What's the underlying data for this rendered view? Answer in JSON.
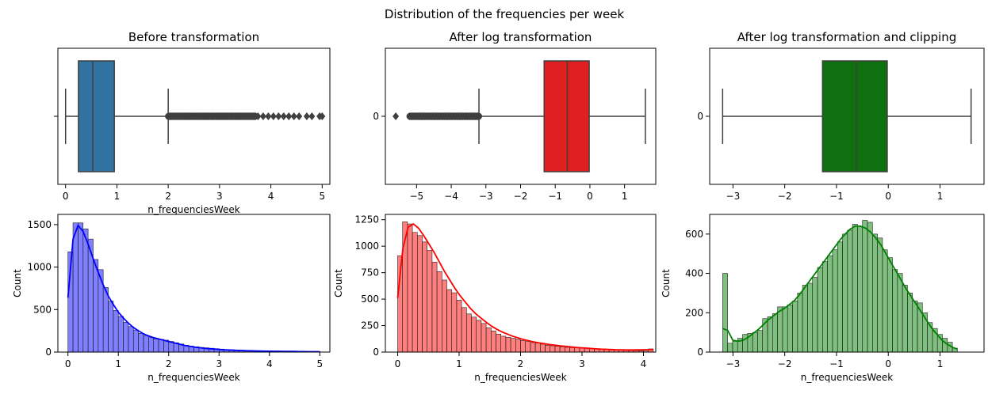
{
  "suptitle": "Distribution of the frequencies per week",
  "chart_data": [
    {
      "type": "box",
      "title": "Before transformation",
      "xlabel": "n_frequenciesWeek",
      "ylabel": "",
      "xlim": [
        -0.15,
        5.15
      ],
      "xticks": [
        0,
        1,
        2,
        3,
        4,
        5
      ],
      "yticks": [
        ""
      ],
      "color": "#3274a1",
      "box": {
        "whislo": 0.0,
        "q1": 0.25,
        "median": 0.53,
        "q3": 0.95,
        "whishi": 2.0
      },
      "outliers": {
        "from": 2.0,
        "to": 5.0,
        "dense_until": 3.7,
        "sparse": [
          3.75,
          3.85,
          3.95,
          4.05,
          4.15,
          4.25,
          4.35,
          4.45,
          4.55,
          4.7,
          4.8,
          4.95,
          5.0
        ]
      }
    },
    {
      "type": "box",
      "title": "After log transformation",
      "xlabel": "",
      "ylabel": "",
      "xlim": [
        -5.9,
        1.9
      ],
      "xticks": [
        -5,
        -4,
        -3,
        -2,
        -1,
        0,
        1
      ],
      "xtick_labels": [
        "−5",
        "−4",
        "−3",
        "−2",
        "−1",
        "0",
        "1"
      ],
      "yticks": [
        "0"
      ],
      "color": "#e02020",
      "box": {
        "whislo": -3.2,
        "q1": -1.32,
        "median": -0.65,
        "q3": -0.02,
        "whishi": 1.6
      },
      "outliers": {
        "from": -5.2,
        "to": -3.2,
        "dense_until": -3.2,
        "sparse": [
          -5.6
        ]
      }
    },
    {
      "type": "box",
      "title": "After log transformation and clipping",
      "xlabel": "",
      "ylabel": "",
      "xlim": [
        -3.45,
        1.85
      ],
      "xticks": [
        -3,
        -2,
        -1,
        0,
        1
      ],
      "xtick_labels": [
        "−3",
        "−2",
        "−1",
        "0",
        "1"
      ],
      "yticks": [
        "0"
      ],
      "color": "#0e700e",
      "box": {
        "whislo": -3.2,
        "q1": -1.27,
        "median": -0.62,
        "q3": -0.02,
        "whishi": 1.6
      },
      "outliers": null
    },
    {
      "type": "histogram",
      "title": "",
      "xlabel": "n_frequenciesWeek",
      "ylabel": "Count",
      "xlim": [
        -0.2,
        5.2
      ],
      "ylim": [
        0,
        1620
      ],
      "xticks": [
        0,
        1,
        2,
        3,
        4,
        5
      ],
      "yticks": [
        0,
        500,
        1000,
        1500
      ],
      "color": "#0000ff",
      "bin_start": 0.0,
      "bin_width": 0.1,
      "counts": [
        1180,
        1520,
        1520,
        1450,
        1330,
        1090,
        970,
        760,
        600,
        490,
        420,
        350,
        300,
        260,
        220,
        195,
        170,
        155,
        150,
        140,
        125,
        110,
        95,
        80,
        70,
        62,
        55,
        50,
        45,
        40,
        35,
        30,
        27,
        25,
        22,
        20,
        18,
        16,
        15,
        14,
        12,
        11,
        10,
        10,
        9,
        8,
        8,
        7,
        7,
        6
      ],
      "kde": [
        640,
        1330,
        1490,
        1420,
        1270,
        1100,
        940,
        790,
        660,
        560,
        470,
        400,
        340,
        290,
        250,
        215,
        190,
        170,
        155,
        140,
        125,
        110,
        95,
        80,
        70,
        60,
        52,
        46,
        40,
        35,
        31,
        27,
        24,
        21,
        19,
        17,
        15,
        14,
        12,
        11,
        10,
        9,
        9,
        8,
        7,
        7,
        6,
        6,
        5,
        5,
        5
      ]
    },
    {
      "type": "histogram",
      "title": "",
      "xlabel": "n_frequenciesWeek",
      "ylabel": "Count",
      "xlim": [
        -0.2,
        4.2
      ],
      "ylim": [
        0,
        1300
      ],
      "xticks": [
        0,
        1,
        2,
        3,
        4
      ],
      "yticks": [
        0,
        250,
        500,
        750,
        1000,
        1250
      ],
      "color": "#ff0000",
      "bin_start": 0.0,
      "bin_width": 0.08,
      "counts": [
        910,
        1230,
        1210,
        1130,
        1100,
        1040,
        960,
        850,
        760,
        680,
        590,
        560,
        490,
        420,
        360,
        330,
        300,
        270,
        230,
        200,
        170,
        150,
        140,
        130,
        120,
        110,
        100,
        90,
        85,
        75,
        65,
        60,
        55,
        50,
        45,
        42,
        40,
        38,
        35,
        33,
        30,
        28,
        25,
        22,
        20,
        18,
        16,
        15,
        14,
        12,
        10,
        30
      ],
      "kde": [
        510,
        980,
        1180,
        1210,
        1170,
        1100,
        1020,
        940,
        850,
        760,
        680,
        600,
        530,
        470,
        410,
        360,
        320,
        280,
        245,
        215,
        190,
        170,
        150,
        135,
        120,
        108,
        97,
        88,
        80,
        72,
        66,
        60,
        55,
        50,
        45,
        41,
        38,
        34,
        31,
        28,
        26,
        24,
        22,
        21,
        20,
        20,
        21,
        22,
        23,
        24
      ]
    },
    {
      "type": "histogram",
      "title": "",
      "xlabel": "n_frequenciesWeek",
      "ylabel": "Count",
      "xlim": [
        -3.45,
        1.85
      ],
      "ylim": [
        0,
        700
      ],
      "xticks": [
        -3,
        -2,
        -1,
        0,
        1
      ],
      "xtick_labels": [
        "−3",
        "−2",
        "−1",
        "0",
        "1"
      ],
      "yticks": [
        0,
        200,
        400,
        600
      ],
      "color": "#008000",
      "bin_start": -3.2,
      "bin_width": 0.0965,
      "counts": [
        400,
        45,
        55,
        70,
        90,
        95,
        100,
        110,
        170,
        180,
        195,
        230,
        230,
        240,
        260,
        300,
        340,
        350,
        380,
        430,
        460,
        490,
        520,
        560,
        600,
        620,
        650,
        640,
        670,
        660,
        600,
        580,
        520,
        480,
        420,
        400,
        340,
        300,
        260,
        250,
        200,
        150,
        120,
        90,
        70,
        50,
        20
      ],
      "kde": [
        120,
        110,
        60,
        55,
        60,
        75,
        95,
        115,
        140,
        165,
        185,
        205,
        220,
        240,
        260,
        290,
        325,
        360,
        395,
        430,
        465,
        500,
        535,
        570,
        600,
        625,
        640,
        640,
        630,
        610,
        580,
        545,
        500,
        455,
        410,
        365,
        320,
        280,
        240,
        200,
        160,
        120,
        90,
        60,
        40,
        25,
        15
      ]
    }
  ]
}
